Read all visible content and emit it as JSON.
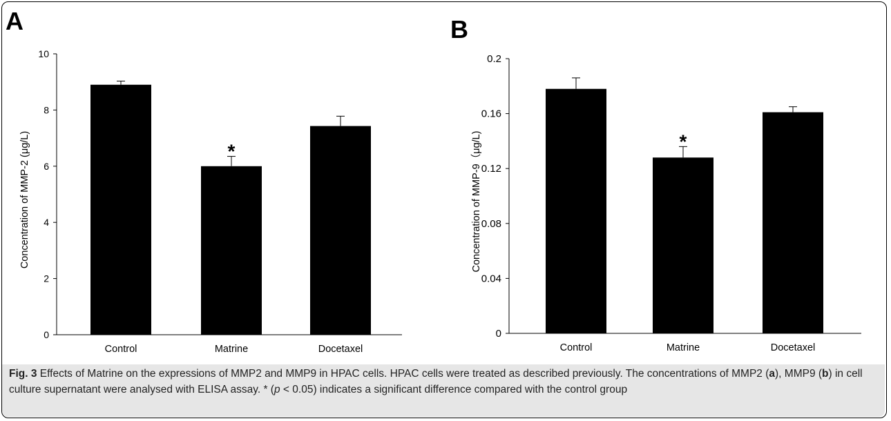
{
  "chart_data": [
    {
      "type": "bar",
      "panel_label": "A",
      "categories": [
        "Control",
        "Matrine",
        "Docetaxel"
      ],
      "values": [
        8.9,
        6.0,
        7.43
      ],
      "errors": [
        0.13,
        0.35,
        0.35
      ],
      "significance": [
        "",
        "*",
        ""
      ],
      "yticks": [
        "0",
        "2",
        "4",
        "6",
        "8",
        "10"
      ],
      "ylim": [
        0,
        10
      ],
      "ylabel": "Concentration of MMP-2 (μg/L)",
      "grid": false,
      "bar_color": "#000000"
    },
    {
      "type": "bar",
      "panel_label": "B",
      "categories": [
        "Control",
        "Matrine",
        "Docetaxel"
      ],
      "values": [
        0.178,
        0.128,
        0.161
      ],
      "errors": [
        0.008,
        0.008,
        0.004
      ],
      "significance": [
        "",
        "*",
        ""
      ],
      "yticks": [
        "0",
        "0.04",
        "0.08",
        "0.12",
        "0.16",
        "0.2"
      ],
      "ylim": [
        0,
        0.2
      ],
      "ylabel": "Concentration of MMP-9（μg/L)",
      "grid": false,
      "bar_color": "#000000"
    }
  ],
  "caption": {
    "fig_label": "Fig. 3",
    "t1": " Effects of Matrine on the expressions of MMP2 and MMP9 in HPAC cells. HPAC cells were treated as described previously. The concentrations of MMP2 (",
    "a": "a",
    "t2": "), MMP9 (",
    "b": "b",
    "t3": ") in cell culture supernatant were analysed with ELISA assay. * (",
    "p": "p",
    "t4": " < 0.05) indicates a significant difference compared with the control group"
  },
  "colors": {
    "caption_band": "#e6e6e6",
    "bars": "#000000",
    "frame": "#000000"
  }
}
